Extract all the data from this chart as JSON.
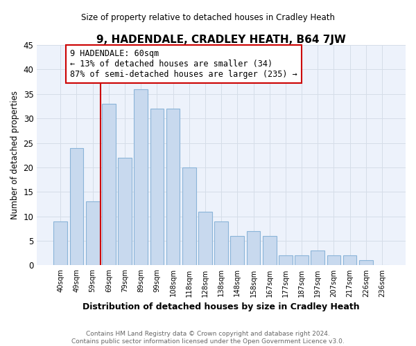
{
  "title": "9, HADENDALE, CRADLEY HEATH, B64 7JW",
  "subtitle": "Size of property relative to detached houses in Cradley Heath",
  "xlabel": "Distribution of detached houses by size in Cradley Heath",
  "ylabel": "Number of detached properties",
  "footer_lines": [
    "Contains HM Land Registry data © Crown copyright and database right 2024.",
    "Contains public sector information licensed under the Open Government Licence v3.0."
  ],
  "bar_labels": [
    "40sqm",
    "49sqm",
    "59sqm",
    "69sqm",
    "79sqm",
    "89sqm",
    "99sqm",
    "108sqm",
    "118sqm",
    "128sqm",
    "138sqm",
    "148sqm",
    "158sqm",
    "167sqm",
    "177sqm",
    "187sqm",
    "197sqm",
    "207sqm",
    "217sqm",
    "226sqm",
    "236sqm"
  ],
  "bar_values": [
    9,
    24,
    13,
    33,
    22,
    36,
    32,
    32,
    20,
    11,
    9,
    6,
    7,
    6,
    2,
    2,
    3,
    2,
    2,
    1,
    0
  ],
  "bar_color": "#c8d9ee",
  "bar_edge_color": "#8ab4d8",
  "vline_x_index": 2,
  "vline_color": "#cc0000",
  "annotation_text": "9 HADENDALE: 60sqm\n← 13% of detached houses are smaller (34)\n87% of semi-detached houses are larger (235) →",
  "annotation_box_facecolor": "#ffffff",
  "annotation_box_edgecolor": "#cc0000",
  "ylim": [
    0,
    45
  ],
  "yticks": [
    0,
    5,
    10,
    15,
    20,
    25,
    30,
    35,
    40,
    45
  ],
  "grid_color": "#d5dde8",
  "background_color": "#ffffff",
  "plot_bg_color": "#edf2fb"
}
